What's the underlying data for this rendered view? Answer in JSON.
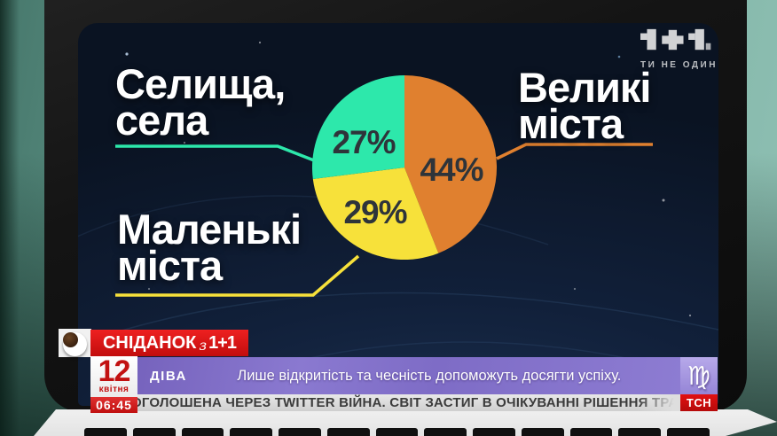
{
  "channel": {
    "logo": "1+1",
    "tagline": "ТИ НЕ ОДИН"
  },
  "chart_data": {
    "type": "pie",
    "title": "",
    "direction": "clockwise",
    "start": "top",
    "legend_position": "callout-labels",
    "slices": [
      {
        "label": "Великі міста",
        "label_lines": [
          "Великі",
          "міста"
        ],
        "value": 44,
        "pct_label": "44%",
        "color": "#e0802f"
      },
      {
        "label": "Маленькі міста",
        "label_lines": [
          "Маленькі",
          "міста"
        ],
        "value": 29,
        "pct_label": "29%",
        "color": "#f7e13a"
      },
      {
        "label": "Селища, села",
        "label_lines": [
          "Селища,",
          "села"
        ],
        "value": 27,
        "pct_label": "27%",
        "color": "#2de8ab"
      }
    ]
  },
  "show": {
    "title": "СНІДАНОК",
    "connector": "з",
    "channel": "1+1"
  },
  "date": {
    "day": "12",
    "month": "квітня"
  },
  "time": "06:45",
  "horoscope": {
    "sign": "ДІВА",
    "symbol": "♍",
    "text": "Лише відкритість та чесність допоможуть досягти успіху."
  },
  "ticker": {
    "text": "ОГОЛОШЕНА ЧЕРЕЗ TWITTER ВІЙНА. СВІТ ЗАСТИГ В ОЧІКУВАННІ РІШЕННЯ ТРАМПА ЩОДО",
    "brand": "ТСН"
  },
  "colors": {
    "accent_red": "#cc1111",
    "horoscope_purple": "#8273cb",
    "ticker_gray": "#d9d9d9",
    "background_teal": "#6ea699",
    "pct_text": "#2e343a"
  }
}
